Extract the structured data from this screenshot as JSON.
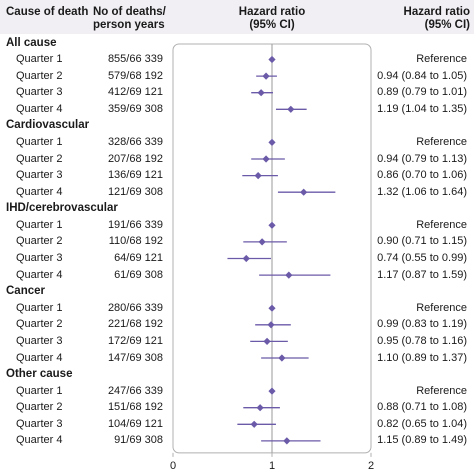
{
  "header": {
    "cause_label": "Cause of death",
    "deaths_label_line1": "No of deaths/",
    "deaths_label_line2": "person years",
    "hr_plot_label_line1": "Hazard ratio",
    "hr_plot_label_line2": "(95% CI)",
    "hr_text_label_line1": "Hazard ratio",
    "hr_text_label_line2": "(95% CI)"
  },
  "colors": {
    "header_bg": "#f1eff4",
    "marker": "#6b5aa8",
    "ci_line": "#6b5aa8",
    "reference_line": "#9a9a9a",
    "plot_frame": "#b0b0b0"
  },
  "groups": [
    {
      "name": "All cause",
      "rows": [
        {
          "quarter": "Quarter 1",
          "deaths": "855/66 339",
          "hr_text": "Reference"
        },
        {
          "quarter": "Quarter 2",
          "deaths": "579/68 192",
          "hr_text": "0.94 (0.84 to 1.05)"
        },
        {
          "quarter": "Quarter 3",
          "deaths": "412/69 121",
          "hr_text": "0.89 (0.79 to 1.01)"
        },
        {
          "quarter": "Quarter 4",
          "deaths": "359/69 308",
          "hr_text": "1.19 (1.04 to 1.35)"
        }
      ]
    },
    {
      "name": "Cardiovascular",
      "rows": [
        {
          "quarter": "Quarter 1",
          "deaths": "328/66 339",
          "hr_text": "Reference"
        },
        {
          "quarter": "Quarter 2",
          "deaths": "207/68 192",
          "hr_text": "0.94 (0.79 to 1.13)"
        },
        {
          "quarter": "Quarter 3",
          "deaths": "136/69 121",
          "hr_text": "0.86 (0.70 to 1.06)"
        },
        {
          "quarter": "Quarter 4",
          "deaths": "121/69 308",
          "hr_text": "1.32 (1.06 to 1.64)"
        }
      ]
    },
    {
      "name": "IHD/cerebrovascular",
      "rows": [
        {
          "quarter": "Quarter 1",
          "deaths": "191/66 339",
          "hr_text": "Reference"
        },
        {
          "quarter": "Quarter 2",
          "deaths": "110/68 192",
          "hr_text": "0.90 (0.71 to 1.15)"
        },
        {
          "quarter": "Quarter 3",
          "deaths": "64/69 121",
          "hr_text": "0.74 (0.55 to 0.99)"
        },
        {
          "quarter": "Quarter 4",
          "deaths": "61/69 308",
          "hr_text": "1.17 (0.87 to 1.59)"
        }
      ]
    },
    {
      "name": "Cancer",
      "rows": [
        {
          "quarter": "Quarter 1",
          "deaths": "280/66 339",
          "hr_text": "Reference"
        },
        {
          "quarter": "Quarter 2",
          "deaths": "221/68 192",
          "hr_text": "0.99 (0.83 to 1.19)"
        },
        {
          "quarter": "Quarter 3",
          "deaths": "172/69 121",
          "hr_text": "0.95 (0.78 to 1.16)"
        },
        {
          "quarter": "Quarter 4",
          "deaths": "147/69 308",
          "hr_text": "1.10 (0.89 to 1.37)"
        }
      ]
    },
    {
      "name": "Other cause",
      "rows": [
        {
          "quarter": "Quarter 1",
          "deaths": "247/66 339",
          "hr_text": "Reference"
        },
        {
          "quarter": "Quarter 2",
          "deaths": "151/68 192",
          "hr_text": "0.88 (0.71 to 1.08)"
        },
        {
          "quarter": "Quarter 3",
          "deaths": "104/69 121",
          "hr_text": "0.82 (0.65 to 1.04)"
        },
        {
          "quarter": "Quarter 4",
          "deaths": "91/69 308",
          "hr_text": "1.15 (0.89 to 1.49)"
        }
      ]
    }
  ],
  "chart_data": {
    "type": "forest",
    "xlim": [
      0,
      2
    ],
    "xticks": [
      "0",
      "1",
      "2"
    ],
    "reference_value": 1,
    "groups": [
      {
        "name": "All cause",
        "points": [
          {
            "label": "Quarter 1",
            "hr": 1.0,
            "lower": 1.0,
            "upper": 1.0
          },
          {
            "label": "Quarter 2",
            "hr": 0.94,
            "lower": 0.84,
            "upper": 1.05
          },
          {
            "label": "Quarter 3",
            "hr": 0.89,
            "lower": 0.79,
            "upper": 1.01
          },
          {
            "label": "Quarter 4",
            "hr": 1.19,
            "lower": 1.04,
            "upper": 1.35
          }
        ]
      },
      {
        "name": "Cardiovascular",
        "points": [
          {
            "label": "Quarter 1",
            "hr": 1.0,
            "lower": 1.0,
            "upper": 1.0
          },
          {
            "label": "Quarter 2",
            "hr": 0.94,
            "lower": 0.79,
            "upper": 1.13
          },
          {
            "label": "Quarter 3",
            "hr": 0.86,
            "lower": 0.7,
            "upper": 1.06
          },
          {
            "label": "Quarter 4",
            "hr": 1.32,
            "lower": 1.06,
            "upper": 1.64
          }
        ]
      },
      {
        "name": "IHD/cerebrovascular",
        "points": [
          {
            "label": "Quarter 1",
            "hr": 1.0,
            "lower": 1.0,
            "upper": 1.0
          },
          {
            "label": "Quarter 2",
            "hr": 0.9,
            "lower": 0.71,
            "upper": 1.15
          },
          {
            "label": "Quarter 3",
            "hr": 0.74,
            "lower": 0.55,
            "upper": 0.99
          },
          {
            "label": "Quarter 4",
            "hr": 1.17,
            "lower": 0.87,
            "upper": 1.59
          }
        ]
      },
      {
        "name": "Cancer",
        "points": [
          {
            "label": "Quarter 1",
            "hr": 1.0,
            "lower": 1.0,
            "upper": 1.0
          },
          {
            "label": "Quarter 2",
            "hr": 0.99,
            "lower": 0.83,
            "upper": 1.19
          },
          {
            "label": "Quarter 3",
            "hr": 0.95,
            "lower": 0.78,
            "upper": 1.16
          },
          {
            "label": "Quarter 4",
            "hr": 1.1,
            "lower": 0.89,
            "upper": 1.37
          }
        ]
      },
      {
        "name": "Other cause",
        "points": [
          {
            "label": "Quarter 1",
            "hr": 1.0,
            "lower": 1.0,
            "upper": 1.0
          },
          {
            "label": "Quarter 2",
            "hr": 0.88,
            "lower": 0.71,
            "upper": 1.08
          },
          {
            "label": "Quarter 3",
            "hr": 0.82,
            "lower": 0.65,
            "upper": 1.04
          },
          {
            "label": "Quarter 4",
            "hr": 1.15,
            "lower": 0.89,
            "upper": 1.49
          }
        ]
      }
    ]
  }
}
